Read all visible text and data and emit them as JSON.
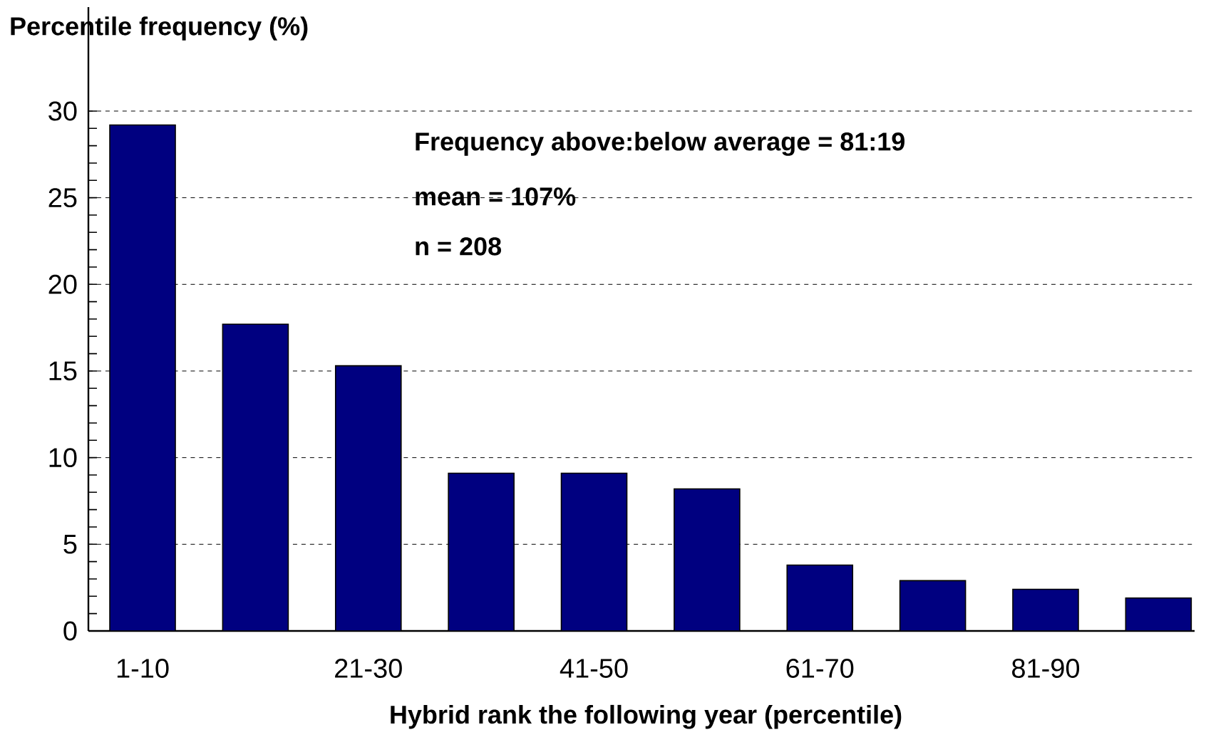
{
  "chart_data": {
    "type": "bar",
    "title": "Percentile frequency (%)",
    "xlabel": "Hybrid rank the following year (percentile)",
    "categories": [
      "1-10",
      null,
      "21-30",
      null,
      "41-50",
      null,
      "61-70",
      null,
      "81-90",
      null
    ],
    "values": [
      29.2,
      17.7,
      15.3,
      9.1,
      9.1,
      8.2,
      3.8,
      2.9,
      2.4,
      1.9
    ],
    "color": "#000080",
    "ylim": [
      0,
      36
    ],
    "yticks": [
      0,
      5,
      10,
      15,
      20,
      25,
      30
    ],
    "grid": "y",
    "annotations": [
      "Frequency above:below average = 81:19",
      "mean = 107%",
      "n = 208"
    ]
  }
}
